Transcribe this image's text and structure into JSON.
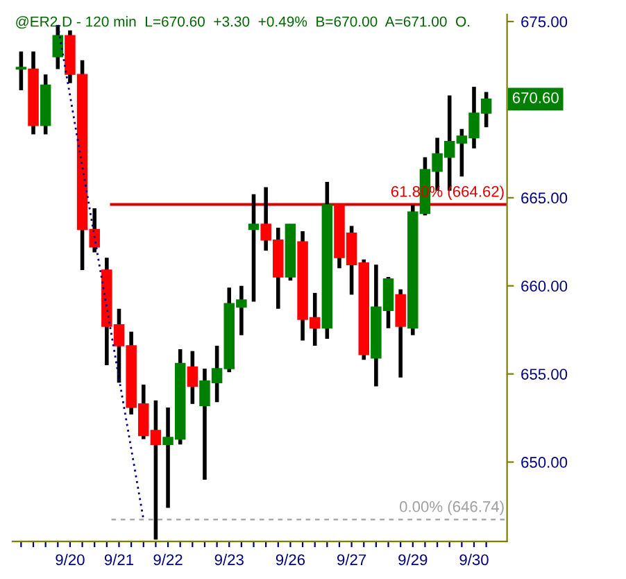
{
  "chart_data": {
    "type": "candlestick",
    "title": "@ER2.D - 120 min  L=670.60  +3.30  +0.49%  B=670.00  A=671.00  O.",
    "categories": [
      null,
      null,
      null,
      null,
      "9/20",
      null,
      null,
      null,
      "9/21",
      null,
      null,
      null,
      "9/22",
      null,
      null,
      null,
      null,
      "9/23",
      null,
      null,
      null,
      null,
      "9/26",
      null,
      null,
      null,
      null,
      "9/27",
      null,
      null,
      null,
      null,
      "9/29",
      null,
      null,
      null,
      null,
      "9/30",
      null
    ],
    "ohlc": [
      [
        672.3,
        673.3,
        671.1,
        672.4
      ],
      [
        672.3,
        673.3,
        668.6,
        669.1
      ],
      [
        669.1,
        672.0,
        668.6,
        671.4
      ],
      [
        673.0,
        674.8,
        672.3,
        674.2
      ],
      [
        674.2,
        674.5,
        671.5,
        672.0
      ],
      [
        672.0,
        672.8,
        660.9,
        663.2
      ],
      [
        663.2,
        664.4,
        661.9,
        662.2
      ],
      [
        660.9,
        661.6,
        655.5,
        657.7
      ],
      [
        657.8,
        658.7,
        654.5,
        656.6
      ],
      [
        656.6,
        657.4,
        652.7,
        653.1
      ],
      [
        653.3,
        654.4,
        651.3,
        651.5
      ],
      [
        651.8,
        653.5,
        645.6,
        651.0
      ],
      [
        651.0,
        653.1,
        647.4,
        651.4
      ],
      [
        651.3,
        656.4,
        651.0,
        655.6
      ],
      [
        655.4,
        656.3,
        653.3,
        654.3
      ],
      [
        653.2,
        655.3,
        649.0,
        654.6
      ],
      [
        654.5,
        656.6,
        653.4,
        655.3
      ],
      [
        655.3,
        659.9,
        655.1,
        659.0
      ],
      [
        658.8,
        660.0,
        657.2,
        659.2
      ],
      [
        663.2,
        665.2,
        659.1,
        663.5
      ],
      [
        663.5,
        665.6,
        662.0,
        662.6
      ],
      [
        662.6,
        663.3,
        658.7,
        660.5
      ],
      [
        660.5,
        663.5,
        660.3,
        663.5
      ],
      [
        662.5,
        663.1,
        656.9,
        658.1
      ],
      [
        658.2,
        659.6,
        656.6,
        657.6
      ],
      [
        657.6,
        665.9,
        657.0,
        664.6
      ],
      [
        664.6,
        664.6,
        661.0,
        661.6
      ],
      [
        663.0,
        663.4,
        659.5,
        661.2
      ],
      [
        661.3,
        661.5,
        655.8,
        656.1
      ],
      [
        655.9,
        661.2,
        654.3,
        658.8
      ],
      [
        658.6,
        660.5,
        657.6,
        660.4
      ],
      [
        659.5,
        659.8,
        654.8,
        657.7
      ],
      [
        657.6,
        664.6,
        657.2,
        664.2
      ],
      [
        664.1,
        667.3,
        664.0,
        666.6
      ],
      [
        666.5,
        668.4,
        665.4,
        667.5
      ],
      [
        667.3,
        670.8,
        665.4,
        668.2
      ],
      [
        668.1,
        668.9,
        666.2,
        668.5
      ],
      [
        668.4,
        671.3,
        667.8,
        669.8
      ],
      [
        669.8,
        671.0,
        669.0,
        670.6
      ]
    ],
    "colors": [
      "#008000",
      "#ff0000",
      "#008000",
      "#008000",
      "#ff0000",
      "#ff0000",
      "#ff0000",
      "#ff0000",
      "#ff0000",
      "#ff0000",
      "#ff0000",
      "#ff0000",
      "#008000",
      "#008000",
      "#ff0000",
      "#008000",
      "#008000",
      "#008000",
      "#008000",
      "#008000",
      "#ff0000",
      "#ff0000",
      "#008000",
      "#ff0000",
      "#ff0000",
      "#008000",
      "#ff0000",
      "#ff0000",
      "#ff0000",
      "#008000",
      "#008000",
      "#ff0000",
      "#008000",
      "#008000",
      "#008000",
      "#008000",
      "#008000",
      "#008000",
      "#008000"
    ],
    "series": [
      {
        "type": "line",
        "color": "#000080",
        "line_style": "dotted",
        "values": [
          null,
          null,
          null,
          674.8,
          null,
          null,
          null,
          null,
          null,
          null,
          646.74,
          null,
          null,
          null,
          null,
          null,
          null,
          null,
          null,
          null,
          null,
          null,
          null,
          null,
          null,
          null,
          null,
          null,
          null,
          null,
          null,
          null,
          null,
          null,
          null,
          null,
          null,
          null,
          null
        ]
      }
    ],
    "ylim": [
      645.5,
      675.4
    ],
    "yticks": [
      {
        "value": 650,
        "label": "650.00"
      },
      {
        "value": 655,
        "label": "655.00"
      },
      {
        "value": 660,
        "label": "660.00"
      },
      {
        "value": 665,
        "label": "665.00"
      },
      {
        "value": 670,
        "label": null
      },
      {
        "value": 675,
        "label": "675.00"
      }
    ],
    "ref_lines": [
      {
        "axis": "y",
        "value": 664.62,
        "label": "61.80% (664.62)",
        "color": "#dd0000",
        "line_style": "solid"
      },
      {
        "axis": "y",
        "value": 646.74,
        "label": "0.00% (646.74)",
        "color": "#a0a0a0",
        "line_style": "dashed"
      }
    ],
    "annotations": [
      {
        "text": "670.60",
        "y": 670.6
      }
    ],
    "grid": false,
    "legend": false
  }
}
